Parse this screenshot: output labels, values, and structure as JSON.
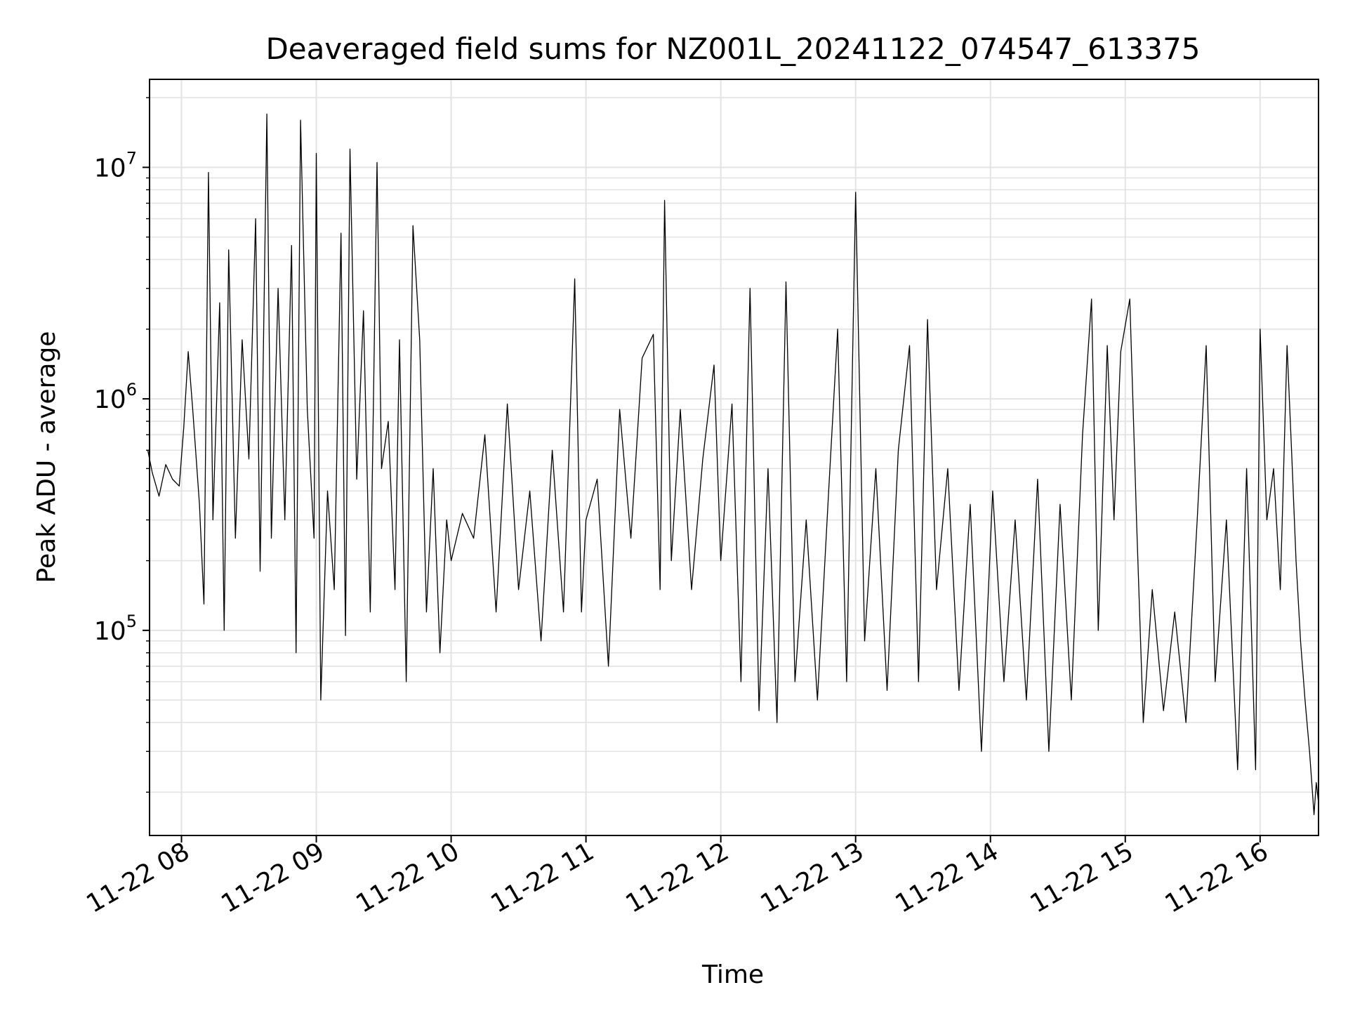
{
  "chart_data": {
    "type": "line",
    "title": "Deaveraged field sums for NZ001L_20241122_074547_613375",
    "xlabel": "Time",
    "ylabel": "Peak ADU - average",
    "y_scale": "log",
    "ylim": [
      13000,
      24000000
    ],
    "xlim": [
      "2024-11-22 07:45:47",
      "2024-11-22 16:26:00"
    ],
    "grid": true,
    "x_ticks": [
      {
        "t": "2024-11-22 08:00",
        "label": "11-22 08"
      },
      {
        "t": "2024-11-22 09:00",
        "label": "11-22 09"
      },
      {
        "t": "2024-11-22 10:00",
        "label": "11-22 10"
      },
      {
        "t": "2024-11-22 11:00",
        "label": "11-22 11"
      },
      {
        "t": "2024-11-22 12:00",
        "label": "11-22 12"
      },
      {
        "t": "2024-11-22 13:00",
        "label": "11-22 13"
      },
      {
        "t": "2024-11-22 14:00",
        "label": "11-22 14"
      },
      {
        "t": "2024-11-22 15:00",
        "label": "11-22 15"
      },
      {
        "t": "2024-11-22 16:00",
        "label": "11-22 16"
      }
    ],
    "y_ticks": [
      {
        "value": 100000,
        "base": "10",
        "exp": "5"
      },
      {
        "value": 1000000,
        "base": "10",
        "exp": "6"
      },
      {
        "value": 10000000,
        "base": "10",
        "exp": "7"
      }
    ],
    "line_color": "#000000",
    "series": [
      {
        "values": [
          [
            "2024-11-22 07:45",
            600000
          ],
          [
            "2024-11-22 07:47",
            480000
          ],
          [
            "2024-11-22 07:50",
            380000
          ],
          [
            "2024-11-22 07:53",
            520000
          ],
          [
            "2024-11-22 07:56",
            450000
          ],
          [
            "2024-11-22 07:59",
            420000
          ],
          [
            "2024-11-22 08:01",
            750000
          ],
          [
            "2024-11-22 08:03",
            1600000
          ],
          [
            "2024-11-22 08:05",
            900000
          ],
          [
            "2024-11-22 08:08",
            350000
          ],
          [
            "2024-11-22 08:10",
            130000
          ],
          [
            "2024-11-22 08:12",
            9500000
          ],
          [
            "2024-11-22 08:14",
            300000
          ],
          [
            "2024-11-22 08:17",
            2600000
          ],
          [
            "2024-11-22 08:19",
            100000
          ],
          [
            "2024-11-22 08:21",
            4400000
          ],
          [
            "2024-11-22 08:24",
            250000
          ],
          [
            "2024-11-22 08:27",
            1800000
          ],
          [
            "2024-11-22 08:30",
            550000
          ],
          [
            "2024-11-22 08:33",
            6000000
          ],
          [
            "2024-11-22 08:35",
            180000
          ],
          [
            "2024-11-22 08:38",
            17000000
          ],
          [
            "2024-11-22 08:40",
            250000
          ],
          [
            "2024-11-22 08:43",
            3000000
          ],
          [
            "2024-11-22 08:46",
            300000
          ],
          [
            "2024-11-22 08:49",
            4600000
          ],
          [
            "2024-11-22 08:51",
            80000
          ],
          [
            "2024-11-22 08:53",
            16000000
          ],
          [
            "2024-11-22 08:56",
            900000
          ],
          [
            "2024-11-22 08:59",
            250000
          ],
          [
            "2024-11-22 09:00",
            11500000
          ],
          [
            "2024-11-22 09:02",
            50000
          ],
          [
            "2024-11-22 09:05",
            400000
          ],
          [
            "2024-11-22 09:08",
            150000
          ],
          [
            "2024-11-22 09:11",
            5200000
          ],
          [
            "2024-11-22 09:13",
            95000
          ],
          [
            "2024-11-22 09:15",
            12000000
          ],
          [
            "2024-11-22 09:18",
            450000
          ],
          [
            "2024-11-22 09:21",
            2400000
          ],
          [
            "2024-11-22 09:24",
            120000
          ],
          [
            "2024-11-22 09:27",
            10500000
          ],
          [
            "2024-11-22 09:29",
            500000
          ],
          [
            "2024-11-22 09:32",
            800000
          ],
          [
            "2024-11-22 09:35",
            150000
          ],
          [
            "2024-11-22 09:37",
            1800000
          ],
          [
            "2024-11-22 09:40",
            60000
          ],
          [
            "2024-11-22 09:43",
            5600000
          ],
          [
            "2024-11-22 09:46",
            1800000
          ],
          [
            "2024-11-22 09:49",
            120000
          ],
          [
            "2024-11-22 09:52",
            500000
          ],
          [
            "2024-11-22 09:55",
            80000
          ],
          [
            "2024-11-22 09:58",
            300000
          ],
          [
            "2024-11-22 10:00",
            200000
          ],
          [
            "2024-11-22 10:05",
            320000
          ],
          [
            "2024-11-22 10:10",
            250000
          ],
          [
            "2024-11-22 10:15",
            700000
          ],
          [
            "2024-11-22 10:20",
            120000
          ],
          [
            "2024-11-22 10:25",
            950000
          ],
          [
            "2024-11-22 10:30",
            150000
          ],
          [
            "2024-11-22 10:35",
            400000
          ],
          [
            "2024-11-22 10:40",
            90000
          ],
          [
            "2024-11-22 10:45",
            600000
          ],
          [
            "2024-11-22 10:50",
            120000
          ],
          [
            "2024-11-22 10:55",
            3300000
          ],
          [
            "2024-11-22 10:58",
            120000
          ],
          [
            "2024-11-22 11:00",
            300000
          ],
          [
            "2024-11-22 11:05",
            450000
          ],
          [
            "2024-11-22 11:10",
            70000
          ],
          [
            "2024-11-22 11:15",
            900000
          ],
          [
            "2024-11-22 11:20",
            250000
          ],
          [
            "2024-11-22 11:25",
            1500000
          ],
          [
            "2024-11-22 11:30",
            1900000
          ],
          [
            "2024-11-22 11:33",
            150000
          ],
          [
            "2024-11-22 11:35",
            7200000
          ],
          [
            "2024-11-22 11:38",
            200000
          ],
          [
            "2024-11-22 11:42",
            900000
          ],
          [
            "2024-11-22 11:47",
            150000
          ],
          [
            "2024-11-22 11:52",
            550000
          ],
          [
            "2024-11-22 11:57",
            1400000
          ],
          [
            "2024-11-22 12:00",
            200000
          ],
          [
            "2024-11-22 12:05",
            950000
          ],
          [
            "2024-11-22 12:09",
            60000
          ],
          [
            "2024-11-22 12:13",
            3000000
          ],
          [
            "2024-11-22 12:17",
            45000
          ],
          [
            "2024-11-22 12:21",
            500000
          ],
          [
            "2024-11-22 12:25",
            40000
          ],
          [
            "2024-11-22 12:29",
            3200000
          ],
          [
            "2024-11-22 12:33",
            60000
          ],
          [
            "2024-11-22 12:38",
            300000
          ],
          [
            "2024-11-22 12:43",
            50000
          ],
          [
            "2024-11-22 12:48",
            400000
          ],
          [
            "2024-11-22 12:52",
            2000000
          ],
          [
            "2024-11-22 12:56",
            60000
          ],
          [
            "2024-11-22 13:00",
            7800000
          ],
          [
            "2024-11-22 13:04",
            90000
          ],
          [
            "2024-11-22 13:09",
            500000
          ],
          [
            "2024-11-22 13:14",
            55000
          ],
          [
            "2024-11-22 13:19",
            600000
          ],
          [
            "2024-11-22 13:24",
            1700000
          ],
          [
            "2024-11-22 13:28",
            60000
          ],
          [
            "2024-11-22 13:32",
            2200000
          ],
          [
            "2024-11-22 13:36",
            150000
          ],
          [
            "2024-11-22 13:41",
            500000
          ],
          [
            "2024-11-22 13:46",
            55000
          ],
          [
            "2024-11-22 13:51",
            350000
          ],
          [
            "2024-11-22 13:56",
            30000
          ],
          [
            "2024-11-22 14:01",
            400000
          ],
          [
            "2024-11-22 14:06",
            60000
          ],
          [
            "2024-11-22 14:11",
            300000
          ],
          [
            "2024-11-22 14:16",
            50000
          ],
          [
            "2024-11-22 14:21",
            450000
          ],
          [
            "2024-11-22 14:26",
            30000
          ],
          [
            "2024-11-22 14:31",
            350000
          ],
          [
            "2024-11-22 14:36",
            50000
          ],
          [
            "2024-11-22 14:41",
            700000
          ],
          [
            "2024-11-22 14:45",
            2700000
          ],
          [
            "2024-11-22 14:48",
            100000
          ],
          [
            "2024-11-22 14:52",
            1700000
          ],
          [
            "2024-11-22 14:55",
            300000
          ],
          [
            "2024-11-22 14:58",
            1600000
          ],
          [
            "2024-11-22 15:02",
            2700000
          ],
          [
            "2024-11-22 15:05",
            300000
          ],
          [
            "2024-11-22 15:08",
            40000
          ],
          [
            "2024-11-22 15:12",
            150000
          ],
          [
            "2024-11-22 15:17",
            45000
          ],
          [
            "2024-11-22 15:22",
            120000
          ],
          [
            "2024-11-22 15:27",
            40000
          ],
          [
            "2024-11-22 15:32",
            300000
          ],
          [
            "2024-11-22 15:36",
            1700000
          ],
          [
            "2024-11-22 15:40",
            60000
          ],
          [
            "2024-11-22 15:45",
            300000
          ],
          [
            "2024-11-22 15:50",
            25000
          ],
          [
            "2024-11-22 15:54",
            500000
          ],
          [
            "2024-11-22 15:58",
            25000
          ],
          [
            "2024-11-22 16:00",
            2000000
          ],
          [
            "2024-11-22 16:03",
            300000
          ],
          [
            "2024-11-22 16:06",
            500000
          ],
          [
            "2024-11-22 16:09",
            150000
          ],
          [
            "2024-11-22 16:12",
            1700000
          ],
          [
            "2024-11-22 16:14",
            600000
          ],
          [
            "2024-11-22 16:16",
            200000
          ],
          [
            "2024-11-22 16:18",
            90000
          ],
          [
            "2024-11-22 16:20",
            50000
          ],
          [
            "2024-11-22 16:22",
            30000
          ],
          [
            "2024-11-22 16:23",
            22000
          ],
          [
            "2024-11-22 16:24",
            16000
          ],
          [
            "2024-11-22 16:25",
            22000
          ],
          [
            "2024-11-22 16:26",
            18000
          ]
        ]
      }
    ]
  }
}
